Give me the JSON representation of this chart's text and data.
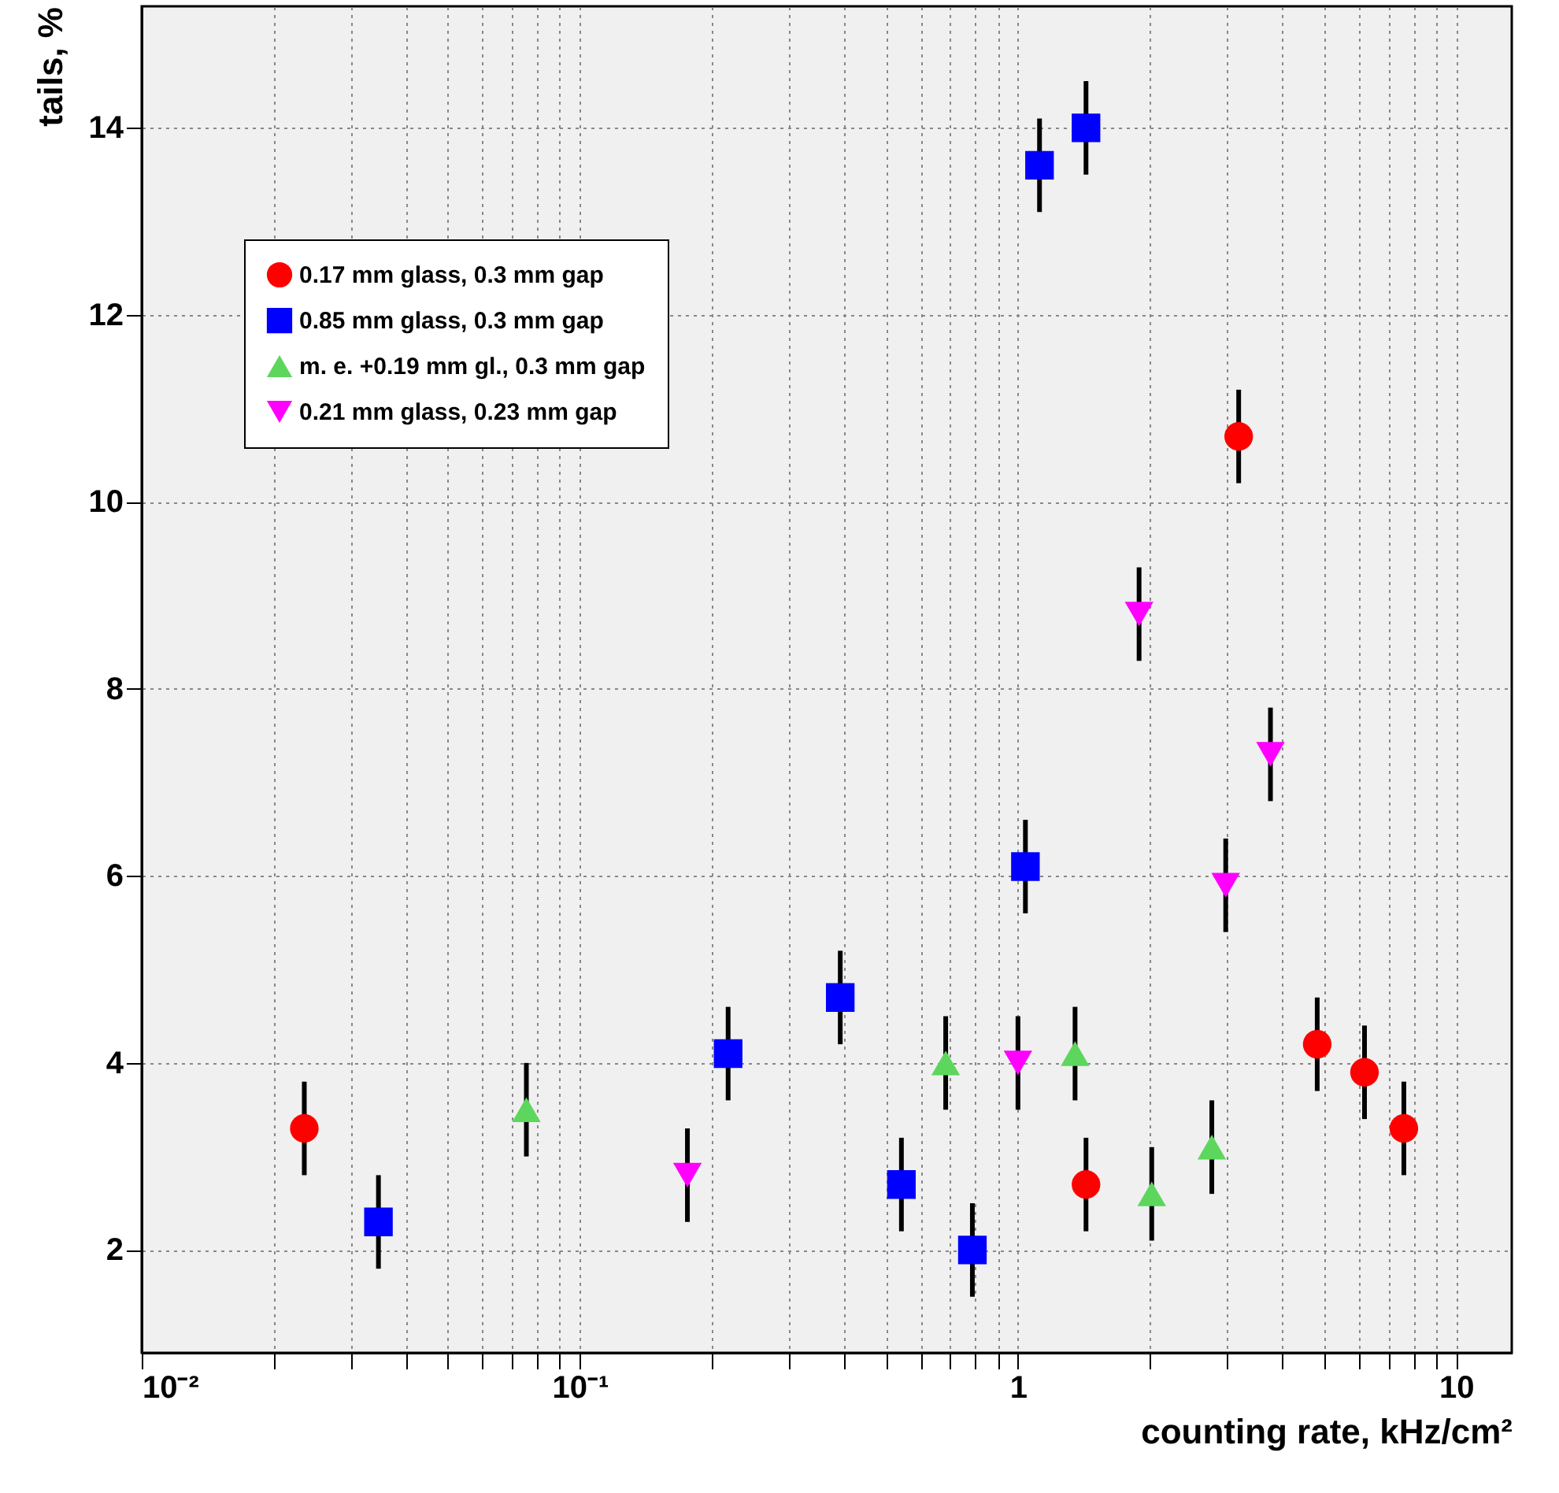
{
  "chart_data": {
    "type": "scatter",
    "xlabel": "counting rate, kHz/cm²",
    "ylabel": "tails, %",
    "log": "x",
    "grid": true,
    "legend": "top left",
    "xlim": [
      0.01,
      13.4
    ],
    "ylim": [
      0.9,
      15.3
    ],
    "xticks": [
      {
        "value": 0.01,
        "label": "10⁻²"
      },
      {
        "value": 0.02,
        "label": null
      },
      {
        "value": 0.03,
        "label": null
      },
      {
        "value": 0.04,
        "label": null
      },
      {
        "value": 0.05,
        "label": null
      },
      {
        "value": 0.06,
        "label": null
      },
      {
        "value": 0.07,
        "label": null
      },
      {
        "value": 0.08,
        "label": null
      },
      {
        "value": 0.09,
        "label": null
      },
      {
        "value": 0.1,
        "label": "10⁻¹"
      },
      {
        "value": 0.2,
        "label": null
      },
      {
        "value": 0.3,
        "label": null
      },
      {
        "value": 0.4,
        "label": null
      },
      {
        "value": 0.5,
        "label": null
      },
      {
        "value": 0.6,
        "label": null
      },
      {
        "value": 0.7,
        "label": null
      },
      {
        "value": 0.8,
        "label": null
      },
      {
        "value": 0.9,
        "label": null
      },
      1,
      {
        "value": 2,
        "label": null
      },
      {
        "value": 3,
        "label": null
      },
      {
        "value": 4,
        "label": null
      },
      {
        "value": 5,
        "label": null
      },
      {
        "value": 6,
        "label": null
      },
      {
        "value": 7,
        "label": null
      },
      {
        "value": 8,
        "label": null
      },
      {
        "value": 9,
        "label": null
      },
      10
    ],
    "yticks": [
      2,
      4,
      6,
      8,
      10,
      12,
      14
    ],
    "series": [
      {
        "name": "0.17 mm glass, 0.3 mm gap",
        "color": "#ff0000",
        "marker": "circle",
        "x": [
          0.0235,
          1.43,
          3.19,
          4.82,
          6.18,
          7.6
        ],
        "values": [
          3.3,
          2.7,
          10.7,
          4.2,
          3.9,
          3.3
        ],
        "errors": [
          0.5,
          0.5,
          0.5,
          0.5,
          0.5,
          0.5
        ]
      },
      {
        "name": "0.85 mm glass, 0.3 mm gap",
        "color": "#0000ff",
        "marker": "square",
        "x": [
          0.0347,
          0.218,
          0.393,
          0.542,
          0.787,
          1.04,
          1.12,
          1.43
        ],
        "values": [
          2.3,
          4.1,
          4.7,
          2.7,
          2.0,
          6.1,
          13.6,
          14.0
        ],
        "errors": [
          0.5,
          0.5,
          0.5,
          0.5,
          0.5,
          0.5,
          0.5,
          0.5
        ]
      },
      {
        "name": "m. e. +0.19 mm gl., 0.3 mm gap",
        "color": "#5dd65d",
        "marker": "triangle",
        "x": [
          0.0755,
          0.684,
          1.35,
          2.02,
          2.77
        ],
        "values": [
          3.5,
          4.0,
          4.1,
          2.6,
          3.1
        ],
        "errors": [
          0.5,
          0.5,
          0.5,
          0.5,
          0.5
        ]
      },
      {
        "name": "0.21 mm glass, 0.23 mm gap",
        "color": "#ff00ff",
        "marker": "triangle-down",
        "x": [
          0.176,
          1.0,
          1.89,
          2.98,
          3.77
        ],
        "values": [
          2.8,
          4.0,
          8.8,
          5.9,
          7.3
        ],
        "errors": [
          0.5,
          0.5,
          0.5,
          0.5,
          0.5
        ]
      }
    ]
  }
}
